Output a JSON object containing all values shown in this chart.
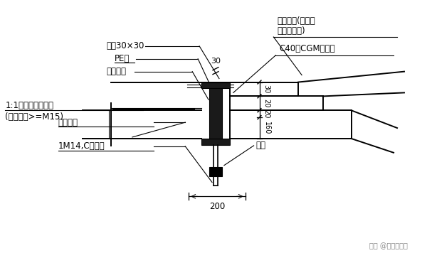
{
  "bg_color": "#ffffff",
  "labels": {
    "zhujiao": "注胶30×30",
    "pe": "PE棒",
    "juben": "聚苯填充",
    "shuini_1": "1:1水泥砂浆找平层",
    "shuini_2": "(强度等级>=M15)",
    "youzhan": "油毡一层",
    "maoshuan": "1M14,C级螺栓",
    "dim200": "200",
    "shajie_1": "砂浆封堵(平整、",
    "shajie_2": "铬实、光滑)",
    "c40": "C40级CGM灌浆料",
    "maotou": "锚头",
    "dim30_top": "30",
    "dim30": "30",
    "dim20_1": "20",
    "dim20_2": "20",
    "dim160": "160"
  },
  "watermark": "知乎 @装配式建筑",
  "figsize": [
    6.0,
    3.7
  ],
  "dpi": 100,
  "black": "#000000",
  "white": "#ffffff",
  "dark_gray": "#1a1a1a",
  "light_gray": "#e8e8e8",
  "hatch_gray": "#555555"
}
